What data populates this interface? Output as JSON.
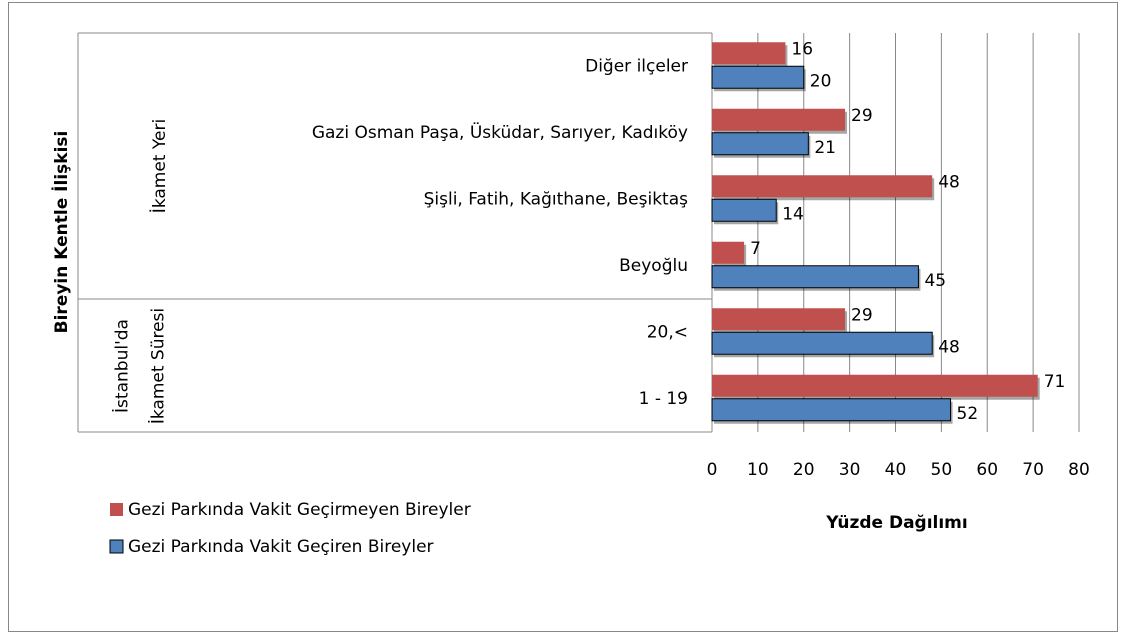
{
  "chart_data": {
    "type": "bar",
    "orientation": "horizontal",
    "axis_title": "Bireyin Kentle İlişkisi",
    "x_label": "Yüzde Dağılımı",
    "groups": [
      {
        "name": "İkamet Yeri",
        "categories": [
          "Diğer ilçeler",
          "Gazi Osman Paşa, Üsküdar, Sarıyer, Kadıköy",
          "Şişli, Fatih, Kağıthane, Beşiktaş",
          "Beyoğlu"
        ]
      },
      {
        "name": "İstanbul'da İkamet Süresi",
        "categories": [
          "20,<",
          "1 - 19"
        ]
      }
    ],
    "series": [
      {
        "name": "Gezi Parkında Vakit Geçirmeyen Bireyler",
        "color": "#c0504d",
        "values": [
          16,
          29,
          48,
          7,
          29,
          71
        ]
      },
      {
        "name": "Gezi Parkında Vakit Geçiren Bireyler",
        "color": "#4f81bd",
        "values": [
          20,
          21,
          14,
          45,
          48,
          52
        ]
      }
    ],
    "xlim": [
      0,
      80
    ],
    "xticks": [
      0,
      10,
      20,
      30,
      40,
      50,
      60,
      70,
      80
    ],
    "grid": true
  }
}
